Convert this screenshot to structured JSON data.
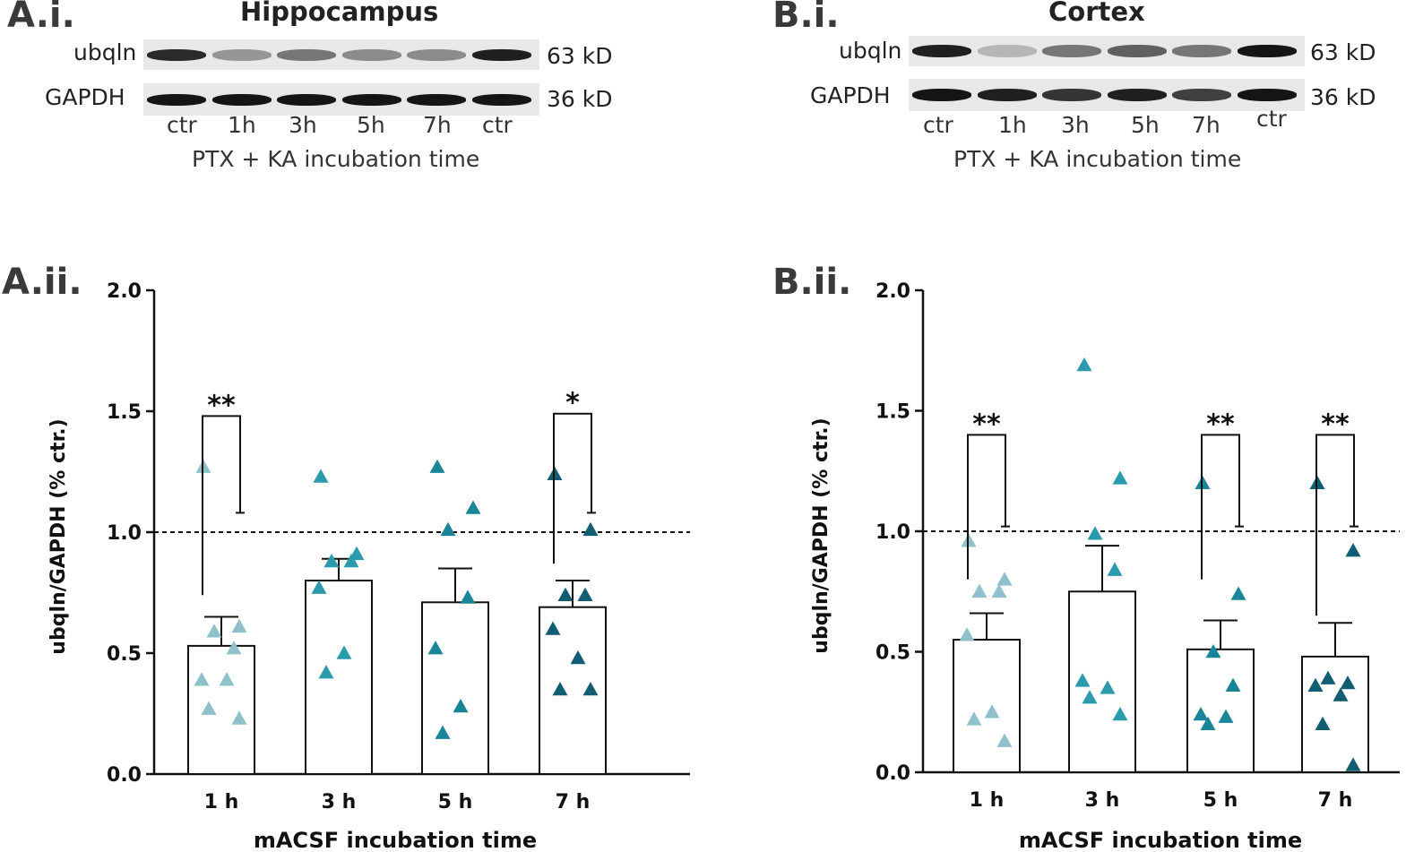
{
  "panels": {
    "a_i": "A.i.",
    "b_i": "B.i.",
    "a_ii": "A.ii.",
    "b_ii": "B.ii."
  },
  "blots": [
    {
      "title": "Hippocampus",
      "rows": [
        {
          "label": "ubqln",
          "kd": "63 kD",
          "intensities": [
            0.85,
            0.35,
            0.5,
            0.4,
            0.4,
            0.9
          ]
        },
        {
          "label": "GAPDH",
          "kd": "36 kD",
          "intensities": [
            0.95,
            0.95,
            0.95,
            0.95,
            0.95,
            0.95
          ]
        }
      ],
      "lanes": [
        "ctr",
        "1h",
        "3h",
        "5h",
        "7h",
        "ctr"
      ],
      "caption": "PTX + KA incubation time"
    },
    {
      "title": "Cortex",
      "rows": [
        {
          "label": "ubqln",
          "kd": "63 kD",
          "intensities": [
            0.9,
            0.2,
            0.5,
            0.6,
            0.5,
            0.95
          ]
        },
        {
          "label": "GAPDH",
          "kd": "36 kD",
          "intensities": [
            0.95,
            0.9,
            0.8,
            0.9,
            0.75,
            0.95
          ]
        }
      ],
      "lanes": [
        "ctr",
        "1h",
        "3h",
        "5h",
        "7h",
        "ctr"
      ],
      "caption": "PTX + KA incubation time"
    }
  ],
  "chart_data": [
    {
      "type": "bar",
      "region": "Hippocampus",
      "title": "",
      "xlabel": "mACSF incubation time",
      "ylabel": "ubqln/GAPDH (% ctr.)",
      "categories": [
        "1 h",
        "3 h",
        "5 h",
        "7 h"
      ],
      "ylim": [
        0,
        2.0
      ],
      "yticks": [
        "0.0",
        "0.5",
        "1.0",
        "1.5",
        "2.0"
      ],
      "reference_line": 1.0,
      "means": [
        0.53,
        0.8,
        0.71,
        0.69
      ],
      "sem": [
        0.12,
        0.09,
        0.14,
        0.11
      ],
      "points": [
        [
          1.27,
          0.61,
          0.59,
          0.52,
          0.39,
          0.39,
          0.27,
          0.23
        ],
        [
          1.23,
          0.91,
          0.88,
          0.88,
          0.77,
          0.5,
          0.42
        ],
        [
          1.27,
          1.1,
          1.01,
          0.73,
          0.52,
          0.28,
          0.17
        ],
        [
          1.24,
          1.01,
          0.74,
          0.74,
          0.6,
          0.48,
          0.35,
          0.35
        ]
      ],
      "point_colors": [
        "#8fc1cb",
        "#2a9aad",
        "#1a8499",
        "#115e72"
      ],
      "significance": [
        {
          "category": "1 h",
          "label": "**",
          "top": 1.48,
          "left_end": 0.74,
          "right_end": 1.08
        },
        {
          "category": "7 h",
          "label": "*",
          "top": 1.49,
          "left_end": 0.87,
          "right_end": 1.08
        }
      ]
    },
    {
      "type": "bar",
      "region": "Cortex",
      "title": "",
      "xlabel": "mACSF incubation time",
      "ylabel": "ubqln/GAPDH (% ctr.)",
      "categories": [
        "1 h",
        "3 h",
        "5 h",
        "7 h"
      ],
      "ylim": [
        0,
        2.0
      ],
      "yticks": [
        "0.0",
        "0.5",
        "1.0",
        "1.5",
        "2.0"
      ],
      "reference_line": 1.0,
      "means": [
        0.55,
        0.75,
        0.51,
        0.48
      ],
      "sem": [
        0.11,
        0.19,
        0.12,
        0.14
      ],
      "points": [
        [
          0.96,
          0.8,
          0.75,
          0.75,
          0.57,
          0.25,
          0.22,
          0.13
        ],
        [
          1.69,
          1.22,
          0.99,
          0.84,
          0.38,
          0.35,
          0.31,
          0.24
        ],
        [
          1.2,
          0.74,
          0.5,
          0.36,
          0.24,
          0.23,
          0.2
        ],
        [
          1.2,
          0.92,
          0.39,
          0.37,
          0.36,
          0.32,
          0.2,
          0.03
        ]
      ],
      "point_colors": [
        "#8fc1cb",
        "#2a9aad",
        "#1a8499",
        "#115e72"
      ],
      "significance": [
        {
          "category": "1 h",
          "label": "**",
          "top": 1.4,
          "left_end": 0.8,
          "right_end": 1.02
        },
        {
          "category": "5 h",
          "label": "**",
          "top": 1.4,
          "left_end": 0.8,
          "right_end": 1.02
        },
        {
          "category": "7 h",
          "label": "**",
          "top": 1.4,
          "left_end": 0.65,
          "right_end": 1.02
        }
      ]
    }
  ]
}
